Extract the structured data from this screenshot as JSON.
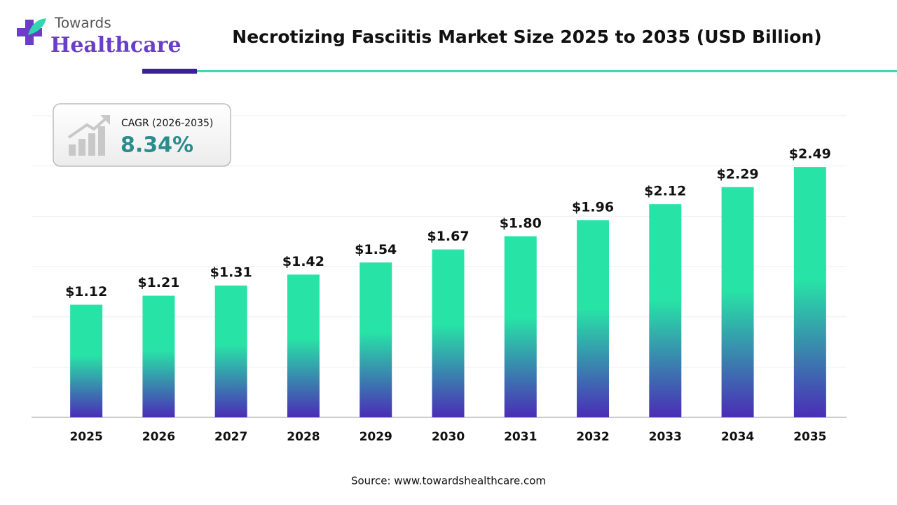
{
  "brand": {
    "line1": "Towards",
    "line2": "Healthcare"
  },
  "chart_data": {
    "type": "bar",
    "title": "Necrotizing Fasciitis Market Size 2025 to 2035 (USD Billion)",
    "categories": [
      "2025",
      "2026",
      "2027",
      "2028",
      "2029",
      "2030",
      "2031",
      "2032",
      "2033",
      "2034",
      "2035"
    ],
    "values": [
      1.12,
      1.21,
      1.31,
      1.42,
      1.54,
      1.67,
      1.8,
      1.96,
      2.12,
      2.29,
      2.49
    ],
    "value_labels": [
      "$1.12",
      "$1.21",
      "$1.31",
      "$1.42",
      "$1.54",
      "$1.67",
      "$1.80",
      "$1.96",
      "$2.12",
      "$2.29",
      "$2.49"
    ],
    "color_top": "#28e3a6",
    "color_bottom": "#4a2db6",
    "ylim": [
      0,
      3
    ],
    "yticks": [
      0,
      0.5,
      1,
      1.5,
      2,
      2.5,
      3
    ],
    "grid": true,
    "cagr_label": "CAGR (2026-2035)",
    "cagr_value": "8.34%",
    "source": "Source: www.towardshealthcare.com"
  }
}
